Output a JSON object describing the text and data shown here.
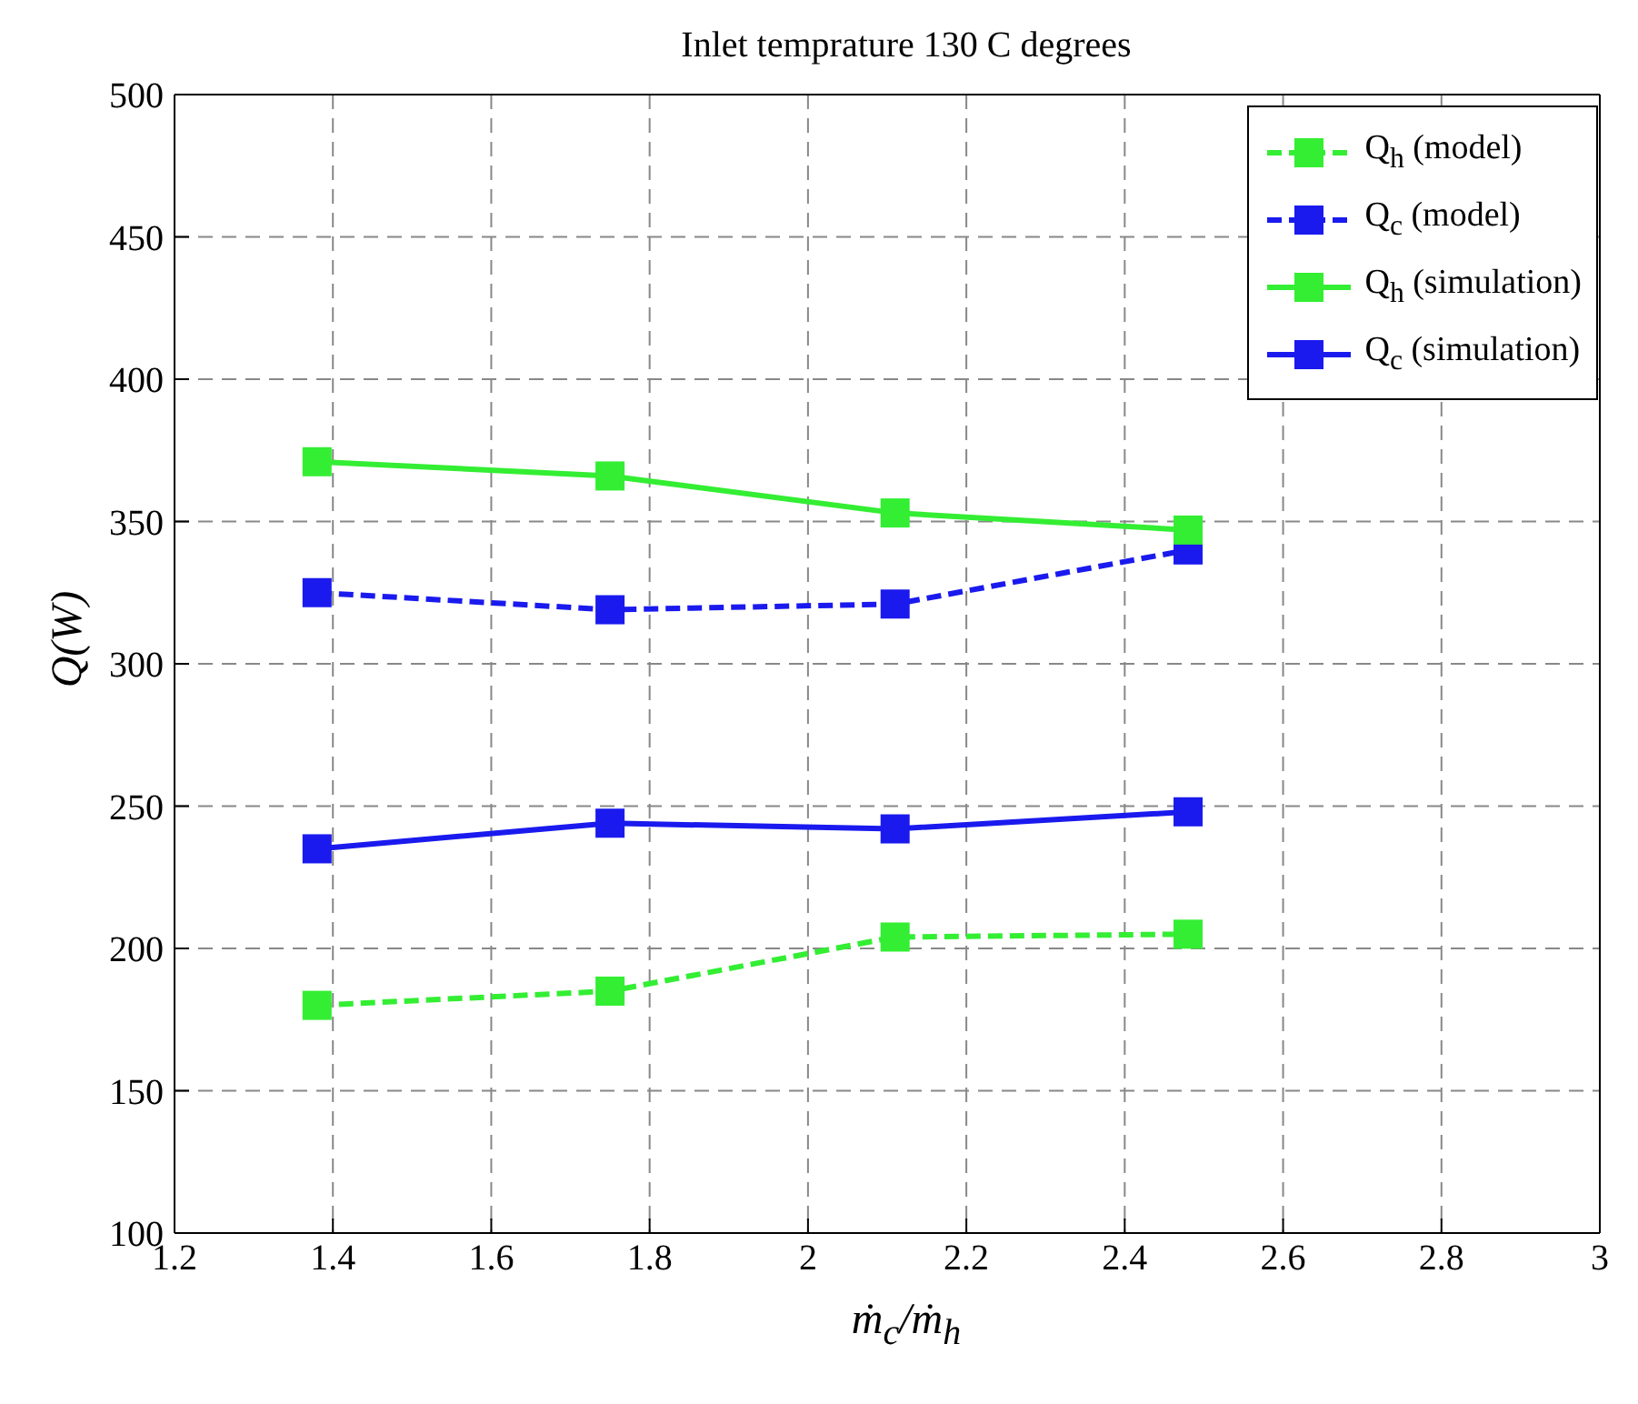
{
  "chart_data": {
    "type": "line",
    "title": "Inlet temprature 130 C degrees",
    "xlabel": "ṁ$_{c}$/ṁ$_{h}$",
    "ylabel": "Q(W)",
    "x": [
      1.38,
      1.75,
      2.11,
      2.48
    ],
    "series": [
      {
        "name": "Q$_{h}$ (model)",
        "color": "#33ee33",
        "line_style": "dashed",
        "values": [
          180,
          185,
          204,
          205
        ]
      },
      {
        "name": "Q$_{c}$ (model)",
        "color": "#1a1aee",
        "line_style": "dashed",
        "values": [
          325,
          319,
          321,
          340
        ]
      },
      {
        "name": "Q$_{h}$ (simulation)",
        "color": "#33ee33",
        "line_style": "solid",
        "values": [
          371,
          366,
          353,
          347
        ]
      },
      {
        "name": "Q$_{c}$ (simulation)",
        "color": "#1a1aee",
        "line_style": "solid",
        "values": [
          235,
          244,
          242,
          248
        ]
      }
    ],
    "xlim": [
      1.2,
      3
    ],
    "xticks": [
      1.2,
      1.4,
      1.6,
      1.8,
      2,
      2.2,
      2.4,
      2.6,
      2.8,
      3
    ],
    "ylim": [
      100,
      500
    ],
    "yticks": [
      100,
      150,
      200,
      250,
      300,
      350,
      400,
      450,
      500
    ],
    "grid": true,
    "legend": "top right",
    "marker": "square"
  }
}
